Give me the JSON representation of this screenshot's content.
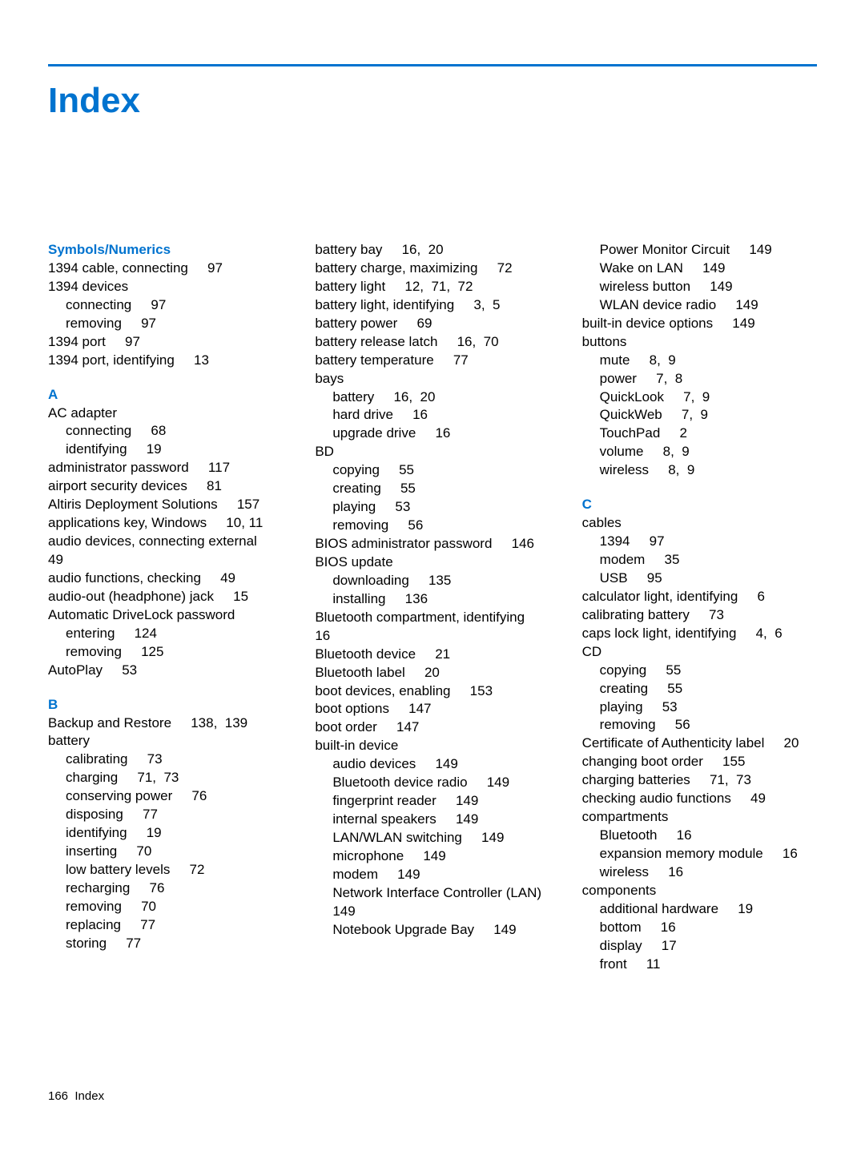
{
  "title": "Index",
  "accent_color": "#0073cf",
  "text_color": "#000000",
  "background_color": "#ffffff",
  "font_family": "Arial",
  "footer": {
    "page_number": "166",
    "footer_label": "Index"
  },
  "columns": [
    [
      {
        "type": "head",
        "text": "Symbols/Numerics"
      },
      {
        "type": "entry",
        "indent": 0,
        "text": "1394 cable, connecting",
        "pages": "97"
      },
      {
        "type": "entry",
        "indent": 0,
        "text": "1394 devices",
        "pages": ""
      },
      {
        "type": "entry",
        "indent": 1,
        "text": "connecting",
        "pages": "97"
      },
      {
        "type": "entry",
        "indent": 1,
        "text": "removing",
        "pages": "97"
      },
      {
        "type": "entry",
        "indent": 0,
        "text": "1394 port",
        "pages": "97"
      },
      {
        "type": "entry",
        "indent": 0,
        "text": "1394 port, identifying",
        "pages": "13"
      },
      {
        "type": "head",
        "text": "A"
      },
      {
        "type": "entry",
        "indent": 0,
        "text": "AC adapter",
        "pages": ""
      },
      {
        "type": "entry",
        "indent": 1,
        "text": "connecting",
        "pages": "68"
      },
      {
        "type": "entry",
        "indent": 1,
        "text": "identifying",
        "pages": "19"
      },
      {
        "type": "entry",
        "indent": 0,
        "text": "administrator password",
        "pages": "117"
      },
      {
        "type": "entry",
        "indent": 0,
        "text": "airport security devices",
        "pages": "81"
      },
      {
        "type": "entry",
        "indent": 0,
        "text": "Altiris Deployment Solutions",
        "pages": "157"
      },
      {
        "type": "entry",
        "indent": 0,
        "text": "applications key, Windows",
        "pages": "10, 11"
      },
      {
        "type": "entry",
        "indent": 0,
        "text": "audio devices, connecting external",
        "pages": "49"
      },
      {
        "type": "entry",
        "indent": 0,
        "text": "audio functions, checking",
        "pages": "49"
      },
      {
        "type": "entry",
        "indent": 0,
        "text": "audio-out (headphone) jack",
        "pages": "15"
      },
      {
        "type": "entry",
        "indent": 0,
        "text": "Automatic DriveLock password",
        "pages": ""
      },
      {
        "type": "entry",
        "indent": 1,
        "text": "entering",
        "pages": "124"
      },
      {
        "type": "entry",
        "indent": 1,
        "text": "removing",
        "pages": "125"
      },
      {
        "type": "entry",
        "indent": 0,
        "text": "AutoPlay",
        "pages": "53"
      },
      {
        "type": "head",
        "text": "B"
      },
      {
        "type": "entry",
        "indent": 0,
        "text": "Backup and Restore",
        "pages": "138,  139"
      },
      {
        "type": "entry",
        "indent": 0,
        "text": "battery",
        "pages": ""
      },
      {
        "type": "entry",
        "indent": 1,
        "text": "calibrating",
        "pages": "73"
      },
      {
        "type": "entry",
        "indent": 1,
        "text": "charging",
        "pages": "71,  73"
      },
      {
        "type": "entry",
        "indent": 1,
        "text": "conserving power",
        "pages": "76"
      },
      {
        "type": "entry",
        "indent": 1,
        "text": "disposing",
        "pages": "77"
      },
      {
        "type": "entry",
        "indent": 1,
        "text": "identifying",
        "pages": "19"
      },
      {
        "type": "entry",
        "indent": 1,
        "text": "inserting",
        "pages": "70"
      },
      {
        "type": "entry",
        "indent": 1,
        "text": "low battery levels",
        "pages": "72"
      },
      {
        "type": "entry",
        "indent": 1,
        "text": "recharging",
        "pages": "76"
      },
      {
        "type": "entry",
        "indent": 1,
        "text": "removing",
        "pages": "70"
      },
      {
        "type": "entry",
        "indent": 1,
        "text": "replacing",
        "pages": "77"
      },
      {
        "type": "entry",
        "indent": 1,
        "text": "storing",
        "pages": "77"
      }
    ],
    [
      {
        "type": "entry",
        "indent": 0,
        "text": "battery bay",
        "pages": "16,  20"
      },
      {
        "type": "entry",
        "indent": 0,
        "text": "battery charge, maximizing",
        "pages": "72"
      },
      {
        "type": "entry",
        "indent": 0,
        "text": "battery light",
        "pages": "12,  71,  72"
      },
      {
        "type": "entry",
        "indent": 0,
        "text": "battery light, identifying",
        "pages": "3,  5"
      },
      {
        "type": "entry",
        "indent": 0,
        "text": "battery power",
        "pages": "69"
      },
      {
        "type": "entry",
        "indent": 0,
        "text": "battery release latch",
        "pages": "16,  70"
      },
      {
        "type": "entry",
        "indent": 0,
        "text": "battery temperature",
        "pages": "77"
      },
      {
        "type": "entry",
        "indent": 0,
        "text": "bays",
        "pages": ""
      },
      {
        "type": "entry",
        "indent": 1,
        "text": "battery",
        "pages": "16,  20"
      },
      {
        "type": "entry",
        "indent": 1,
        "text": "hard drive",
        "pages": "16"
      },
      {
        "type": "entry",
        "indent": 1,
        "text": "upgrade drive",
        "pages": "16"
      },
      {
        "type": "entry",
        "indent": 0,
        "text": "BD",
        "pages": ""
      },
      {
        "type": "entry",
        "indent": 1,
        "text": "copying",
        "pages": "55"
      },
      {
        "type": "entry",
        "indent": 1,
        "text": "creating",
        "pages": "55"
      },
      {
        "type": "entry",
        "indent": 1,
        "text": "playing",
        "pages": "53"
      },
      {
        "type": "entry",
        "indent": 1,
        "text": "removing",
        "pages": "56"
      },
      {
        "type": "entry",
        "indent": 0,
        "text": "BIOS administrator password",
        "pages": "146"
      },
      {
        "type": "entry",
        "indent": 0,
        "text": "BIOS update",
        "pages": ""
      },
      {
        "type": "entry",
        "indent": 1,
        "text": "downloading",
        "pages": "135"
      },
      {
        "type": "entry",
        "indent": 1,
        "text": "installing",
        "pages": "136"
      },
      {
        "type": "entry",
        "indent": 0,
        "text": "Bluetooth compartment, identifying",
        "pages": "16"
      },
      {
        "type": "entry",
        "indent": 0,
        "text": "Bluetooth device",
        "pages": "21"
      },
      {
        "type": "entry",
        "indent": 0,
        "text": "Bluetooth label",
        "pages": "20"
      },
      {
        "type": "entry",
        "indent": 0,
        "text": "boot devices, enabling",
        "pages": "153"
      },
      {
        "type": "entry",
        "indent": 0,
        "text": "boot options",
        "pages": "147"
      },
      {
        "type": "entry",
        "indent": 0,
        "text": "boot order",
        "pages": "147"
      },
      {
        "type": "entry",
        "indent": 0,
        "text": "built-in device",
        "pages": ""
      },
      {
        "type": "entry",
        "indent": 1,
        "text": "audio devices",
        "pages": "149"
      },
      {
        "type": "entry",
        "indent": 1,
        "text": "Bluetooth device radio",
        "pages": "149"
      },
      {
        "type": "entry",
        "indent": 1,
        "text": "fingerprint reader",
        "pages": "149"
      },
      {
        "type": "entry",
        "indent": 1,
        "text": "internal speakers",
        "pages": "149"
      },
      {
        "type": "entry",
        "indent": 1,
        "text": "LAN/WLAN switching",
        "pages": "149"
      },
      {
        "type": "entry",
        "indent": 1,
        "text": "microphone",
        "pages": "149"
      },
      {
        "type": "entry",
        "indent": 1,
        "text": "modem",
        "pages": "149"
      },
      {
        "type": "entry",
        "indent": 1,
        "text": "Network Interface Controller (LAN)",
        "pages": "149"
      },
      {
        "type": "entry",
        "indent": 1,
        "text": "Notebook Upgrade Bay",
        "pages": "149"
      }
    ],
    [
      {
        "type": "entry",
        "indent": 1,
        "text": "Power Monitor Circuit",
        "pages": "149"
      },
      {
        "type": "entry",
        "indent": 1,
        "text": "Wake on LAN",
        "pages": "149"
      },
      {
        "type": "entry",
        "indent": 1,
        "text": "wireless button",
        "pages": "149"
      },
      {
        "type": "entry",
        "indent": 1,
        "text": "WLAN device radio",
        "pages": "149"
      },
      {
        "type": "entry",
        "indent": 0,
        "text": "built-in device options",
        "pages": "149"
      },
      {
        "type": "entry",
        "indent": 0,
        "text": "buttons",
        "pages": ""
      },
      {
        "type": "entry",
        "indent": 1,
        "text": "mute",
        "pages": "8,  9"
      },
      {
        "type": "entry",
        "indent": 1,
        "text": "power",
        "pages": "7,  8"
      },
      {
        "type": "entry",
        "indent": 1,
        "text": "QuickLook",
        "pages": "7,  9"
      },
      {
        "type": "entry",
        "indent": 1,
        "text": "QuickWeb",
        "pages": "7,  9"
      },
      {
        "type": "entry",
        "indent": 1,
        "text": "TouchPad",
        "pages": "2"
      },
      {
        "type": "entry",
        "indent": 1,
        "text": "volume",
        "pages": "8,  9"
      },
      {
        "type": "entry",
        "indent": 1,
        "text": "wireless",
        "pages": "8,  9"
      },
      {
        "type": "head",
        "text": "C"
      },
      {
        "type": "entry",
        "indent": 0,
        "text": "cables",
        "pages": ""
      },
      {
        "type": "entry",
        "indent": 1,
        "text": "1394",
        "pages": "97"
      },
      {
        "type": "entry",
        "indent": 1,
        "text": "modem",
        "pages": "35"
      },
      {
        "type": "entry",
        "indent": 1,
        "text": "USB",
        "pages": "95"
      },
      {
        "type": "entry",
        "indent": 0,
        "text": "calculator light, identifying",
        "pages": "6"
      },
      {
        "type": "entry",
        "indent": 0,
        "text": "calibrating battery",
        "pages": "73"
      },
      {
        "type": "entry",
        "indent": 0,
        "text": "caps lock light, identifying",
        "pages": "4,  6"
      },
      {
        "type": "entry",
        "indent": 0,
        "text": "CD",
        "pages": ""
      },
      {
        "type": "entry",
        "indent": 1,
        "text": "copying",
        "pages": "55"
      },
      {
        "type": "entry",
        "indent": 1,
        "text": "creating",
        "pages": "55"
      },
      {
        "type": "entry",
        "indent": 1,
        "text": "playing",
        "pages": "53"
      },
      {
        "type": "entry",
        "indent": 1,
        "text": "removing",
        "pages": "56"
      },
      {
        "type": "entry",
        "indent": 0,
        "text": "Certificate of Authenticity label",
        "pages": "20"
      },
      {
        "type": "entry",
        "indent": 0,
        "text": "changing boot order",
        "pages": "155"
      },
      {
        "type": "entry",
        "indent": 0,
        "text": "charging batteries",
        "pages": "71,  73"
      },
      {
        "type": "entry",
        "indent": 0,
        "text": "checking audio functions",
        "pages": "49"
      },
      {
        "type": "entry",
        "indent": 0,
        "text": "compartments",
        "pages": ""
      },
      {
        "type": "entry",
        "indent": 1,
        "text": "Bluetooth",
        "pages": "16"
      },
      {
        "type": "entry",
        "indent": 1,
        "text": "expansion memory module",
        "pages": "16"
      },
      {
        "type": "entry",
        "indent": 1,
        "text": "wireless",
        "pages": "16"
      },
      {
        "type": "entry",
        "indent": 0,
        "text": "components",
        "pages": ""
      },
      {
        "type": "entry",
        "indent": 1,
        "text": "additional hardware",
        "pages": "19"
      },
      {
        "type": "entry",
        "indent": 1,
        "text": "bottom",
        "pages": "16"
      },
      {
        "type": "entry",
        "indent": 1,
        "text": "display",
        "pages": "17"
      },
      {
        "type": "entry",
        "indent": 1,
        "text": "front",
        "pages": "11"
      }
    ]
  ]
}
